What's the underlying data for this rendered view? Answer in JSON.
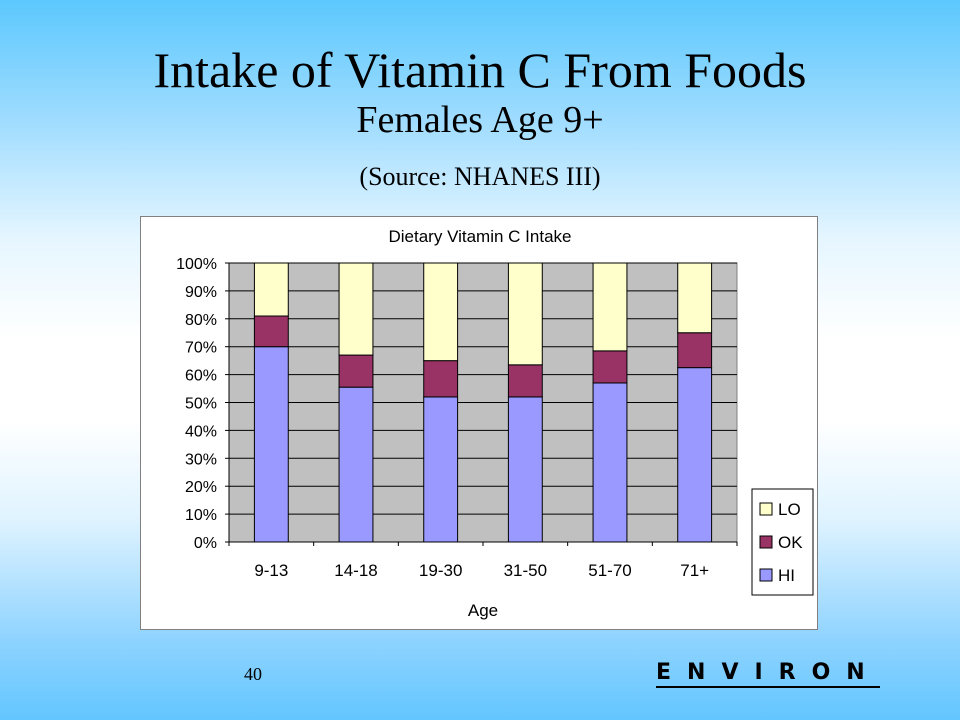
{
  "slide": {
    "title": "Intake of Vitamin C From Foods",
    "subtitle": "Females Age 9+",
    "source": "(Source:  NHANES III)",
    "page_number": "40",
    "logo_text": "ENVIRON"
  },
  "chart_data": {
    "type": "bar",
    "stacked": true,
    "title": "Dietary Vitamin C Intake",
    "xlabel": "Age",
    "ylabel": "",
    "categories": [
      "9-13",
      "14-18",
      "19-30",
      "31-50",
      "51-70",
      "71+"
    ],
    "y_ticks": [
      "0%",
      "10%",
      "20%",
      "30%",
      "40%",
      "50%",
      "60%",
      "70%",
      "80%",
      "90%",
      "100%"
    ],
    "ylim": [
      0,
      100
    ],
    "series": [
      {
        "name": "HI",
        "values": [
          70,
          55.5,
          52,
          52,
          57,
          62.5
        ],
        "color": "#9999ff"
      },
      {
        "name": "OK",
        "values": [
          11,
          11.5,
          13,
          11.5,
          11.5,
          12.5
        ],
        "color": "#993366"
      },
      {
        "name": "LO",
        "values": [
          19,
          33,
          35,
          36.5,
          31.5,
          25
        ],
        "color": "#ffffcc"
      }
    ],
    "legend_order": [
      "LO",
      "OK",
      "HI"
    ],
    "legend_position": "right",
    "plot_background": "#c0c0c0",
    "grid": true
  }
}
